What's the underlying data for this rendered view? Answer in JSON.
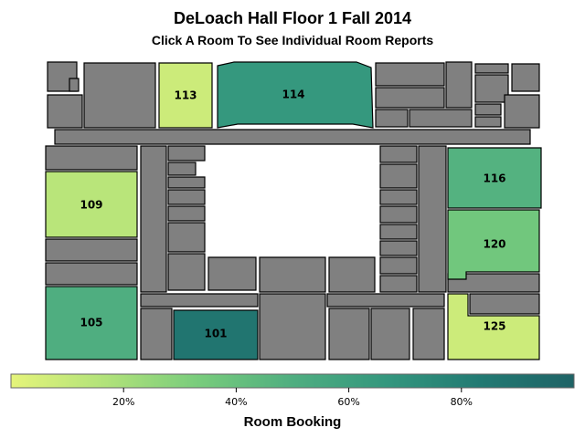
{
  "header": {
    "title": "DeLoach Hall Floor 1 Fall 2014",
    "subtitle": "Click A Room To See Individual Room Reports"
  },
  "rooms": [
    {
      "id": "113",
      "label": "113",
      "booking": 0.08
    },
    {
      "id": "114",
      "label": "114",
      "booking": 0.66
    },
    {
      "id": "109",
      "label": "109",
      "booking": 0.14
    },
    {
      "id": "116",
      "label": "116",
      "booking": 0.48
    },
    {
      "id": "120",
      "label": "120",
      "booking": 0.36
    },
    {
      "id": "105",
      "label": "105",
      "booking": 0.5
    },
    {
      "id": "101",
      "label": "101",
      "booking": 0.87
    },
    {
      "id": "125",
      "label": "125",
      "booking": 0.08
    }
  ],
  "legend": {
    "title": "Room Booking",
    "ticks": [
      {
        "value": 0.2,
        "label": "20%"
      },
      {
        "value": 0.4,
        "label": "40%"
      },
      {
        "value": 0.6,
        "label": "60%"
      },
      {
        "value": 0.8,
        "label": "80%"
      }
    ],
    "colors": [
      "#e5f47a",
      "#b1e27a",
      "#78cc7c",
      "#4fae80",
      "#34977e",
      "#227a73",
      "#1f6366"
    ]
  }
}
